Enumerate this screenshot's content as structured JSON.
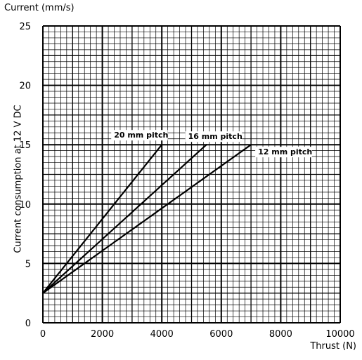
{
  "chart_data": {
    "type": "line",
    "title": "Current (mm/s)",
    "xlabel": "Thrust (N)",
    "ylabel": "Current consumption at 12 V DC",
    "xlim": [
      0,
      10000
    ],
    "ylim": [
      0,
      25
    ],
    "x_ticks": [
      "0",
      "2000",
      "4000",
      "6000",
      "8000",
      "10000"
    ],
    "y_ticks": [
      "0",
      "5",
      "10",
      "15",
      "20",
      "25"
    ],
    "grid": "on (fine millimetre-style grid with bold major lines)",
    "series": [
      {
        "name": "20 mm pitch",
        "x": [
          0,
          4000
        ],
        "y": [
          2.5,
          15
        ]
      },
      {
        "name": "16 mm pitch",
        "x": [
          0,
          5500
        ],
        "y": [
          2.5,
          15
        ]
      },
      {
        "name": "12 mm pitch",
        "x": [
          0,
          7000
        ],
        "y": [
          2.5,
          15
        ]
      }
    ],
    "colors": {
      "line": "#000000",
      "grid": "#000000",
      "background": "#ffffff"
    }
  }
}
